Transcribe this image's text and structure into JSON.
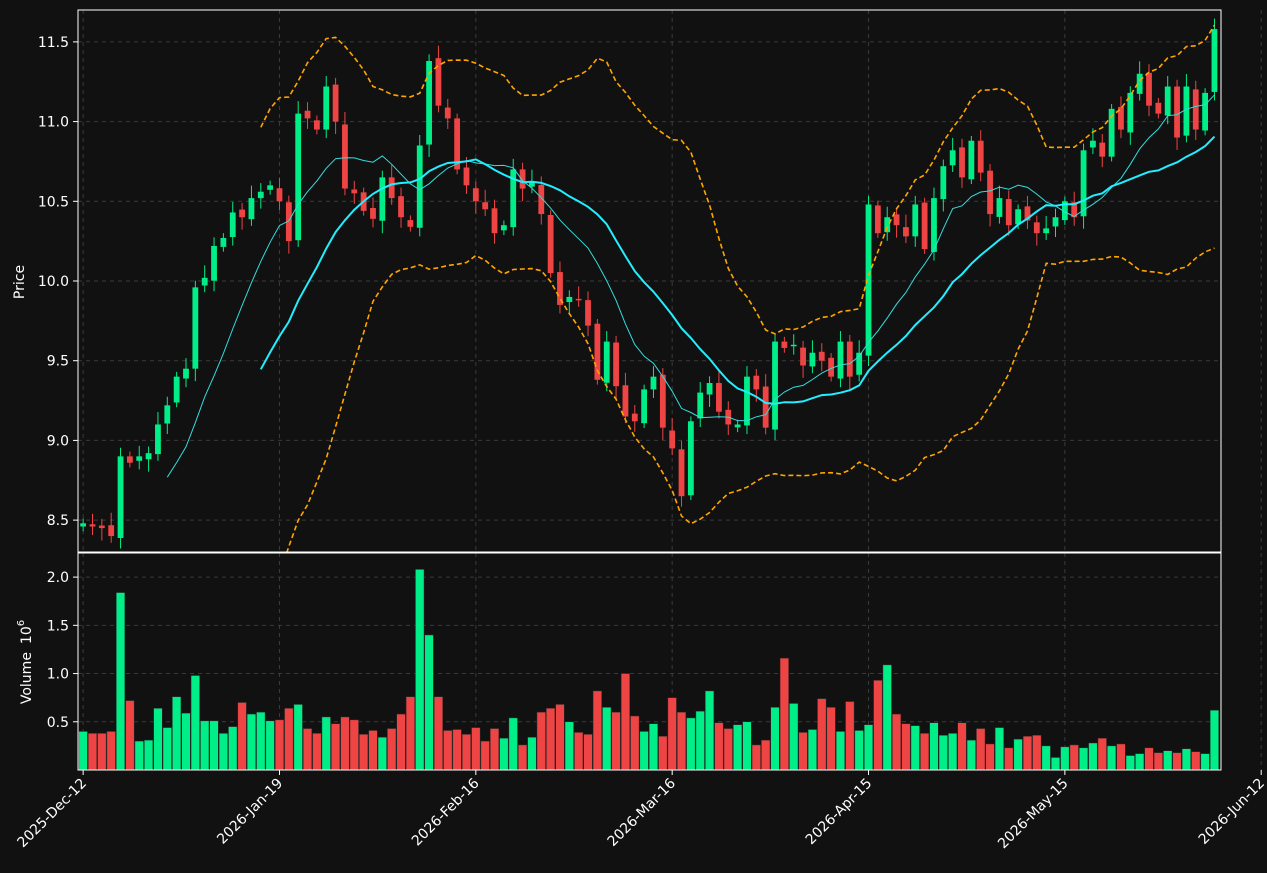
{
  "chart_data": {
    "type": "candlestick",
    "price_panel": {
      "ylabel": "Price",
      "yticks": [
        8.5,
        9.0,
        9.5,
        10.0,
        10.5,
        11.0,
        11.5
      ],
      "ylim": [
        8.3,
        11.7
      ]
    },
    "volume_panel": {
      "ylabel": "Volume",
      "ylabel_exponent": "6",
      "yticks": [
        0.5,
        1.0,
        1.5,
        2.0
      ],
      "ylim": [
        0.0,
        2.25
      ]
    },
    "x_ticks": [
      {
        "label": "2025-Dec-12",
        "index": 0
      },
      {
        "label": "2026-Jan-19",
        "index": 21
      },
      {
        "label": "2026-Feb-16",
        "index": 42
      },
      {
        "label": "2026-Mar-16",
        "index": 63
      },
      {
        "label": "2026-Apr-15",
        "index": 84
      },
      {
        "label": "2026-May-15",
        "index": 105
      },
      {
        "label": "2026-Jun-12",
        "index": 126
      }
    ],
    "grid": true,
    "colors": {
      "up": "#00ee88",
      "down": "#ee4444",
      "ma_short": "#33dddd",
      "ma_long": "#22eeff",
      "bollinger": "#ffa500",
      "background": "#111111"
    },
    "overlays": [
      {
        "kind": "moving-average",
        "window": 10,
        "color": "#33dddd"
      },
      {
        "kind": "moving-average",
        "window": 20,
        "color": "#22eeff"
      },
      {
        "kind": "bollinger-bands",
        "window": 20,
        "color": "#ffa500"
      }
    ],
    "closes": [
      8.48,
      8.46,
      8.45,
      8.4,
      8.9,
      8.86,
      8.9,
      8.92,
      9.1,
      9.22,
      9.4,
      9.45,
      9.96,
      10.02,
      10.22,
      10.27,
      10.43,
      10.4,
      10.52,
      10.56,
      10.6,
      10.5,
      10.25,
      11.05,
      11.02,
      10.95,
      11.22,
      11.0,
      10.58,
      10.55,
      10.44,
      10.39,
      10.65,
      10.52,
      10.4,
      10.34,
      10.85,
      11.38,
      11.1,
      11.02,
      10.7,
      10.6,
      10.5,
      10.45,
      10.3,
      10.35,
      10.7,
      10.58,
      10.62,
      10.42,
      10.05,
      9.85,
      9.9,
      9.88,
      9.72,
      9.38,
      9.62,
      9.34,
      9.15,
      9.12,
      9.32,
      9.4,
      9.08,
      8.95,
      8.65,
      9.12,
      9.3,
      9.36,
      9.18,
      9.1,
      9.1,
      9.4,
      9.32,
      9.08,
      9.62,
      9.58,
      9.6,
      9.47,
      9.55,
      9.5,
      9.4,
      9.62,
      9.4,
      9.55,
      10.48,
      10.3,
      10.4,
      10.35,
      10.28,
      10.48,
      10.2,
      10.52,
      10.72,
      10.82,
      10.65,
      10.88,
      10.68,
      10.42,
      10.52,
      10.35,
      10.45,
      10.38,
      10.3,
      10.33,
      10.4,
      10.5,
      10.4,
      10.82,
      10.88,
      10.78,
      11.08,
      10.95,
      11.18,
      11.3,
      11.1,
      11.05,
      11.22,
      10.9,
      11.22,
      10.95,
      11.18,
      11.58
    ],
    "volumes": [
      0.4,
      0.38,
      0.38,
      0.4,
      1.84,
      0.72,
      0.3,
      0.31,
      0.64,
      0.44,
      0.76,
      0.59,
      0.98,
      0.51,
      0.51,
      0.38,
      0.45,
      0.7,
      0.58,
      0.6,
      0.51,
      0.52,
      0.64,
      0.68,
      0.43,
      0.38,
      0.55,
      0.48,
      0.55,
      0.52,
      0.37,
      0.41,
      0.34,
      0.43,
      0.58,
      0.76,
      2.08,
      1.4,
      0.76,
      0.41,
      0.42,
      0.37,
      0.44,
      0.3,
      0.43,
      0.33,
      0.54,
      0.26,
      0.34,
      0.6,
      0.64,
      0.68,
      0.5,
      0.39,
      0.37,
      0.82,
      0.65,
      0.6,
      1.0,
      0.56,
      0.4,
      0.48,
      0.35,
      0.75,
      0.6,
      0.54,
      0.61,
      0.82,
      0.49,
      0.43,
      0.47,
      0.5,
      0.26,
      0.31,
      0.65,
      1.16,
      0.69,
      0.39,
      0.42,
      0.74,
      0.65,
      0.4,
      0.71,
      0.41,
      0.47,
      0.93,
      1.09,
      0.58,
      0.48,
      0.46,
      0.38,
      0.49,
      0.36,
      0.38,
      0.49,
      0.31,
      0.43,
      0.27,
      0.44,
      0.23,
      0.32,
      0.35,
      0.36,
      0.25,
      0.13,
      0.24,
      0.26,
      0.23,
      0.28,
      0.33,
      0.25,
      0.27,
      0.15,
      0.17,
      0.23,
      0.18,
      0.2,
      0.18,
      0.22,
      0.19,
      0.17,
      0.62
    ]
  }
}
